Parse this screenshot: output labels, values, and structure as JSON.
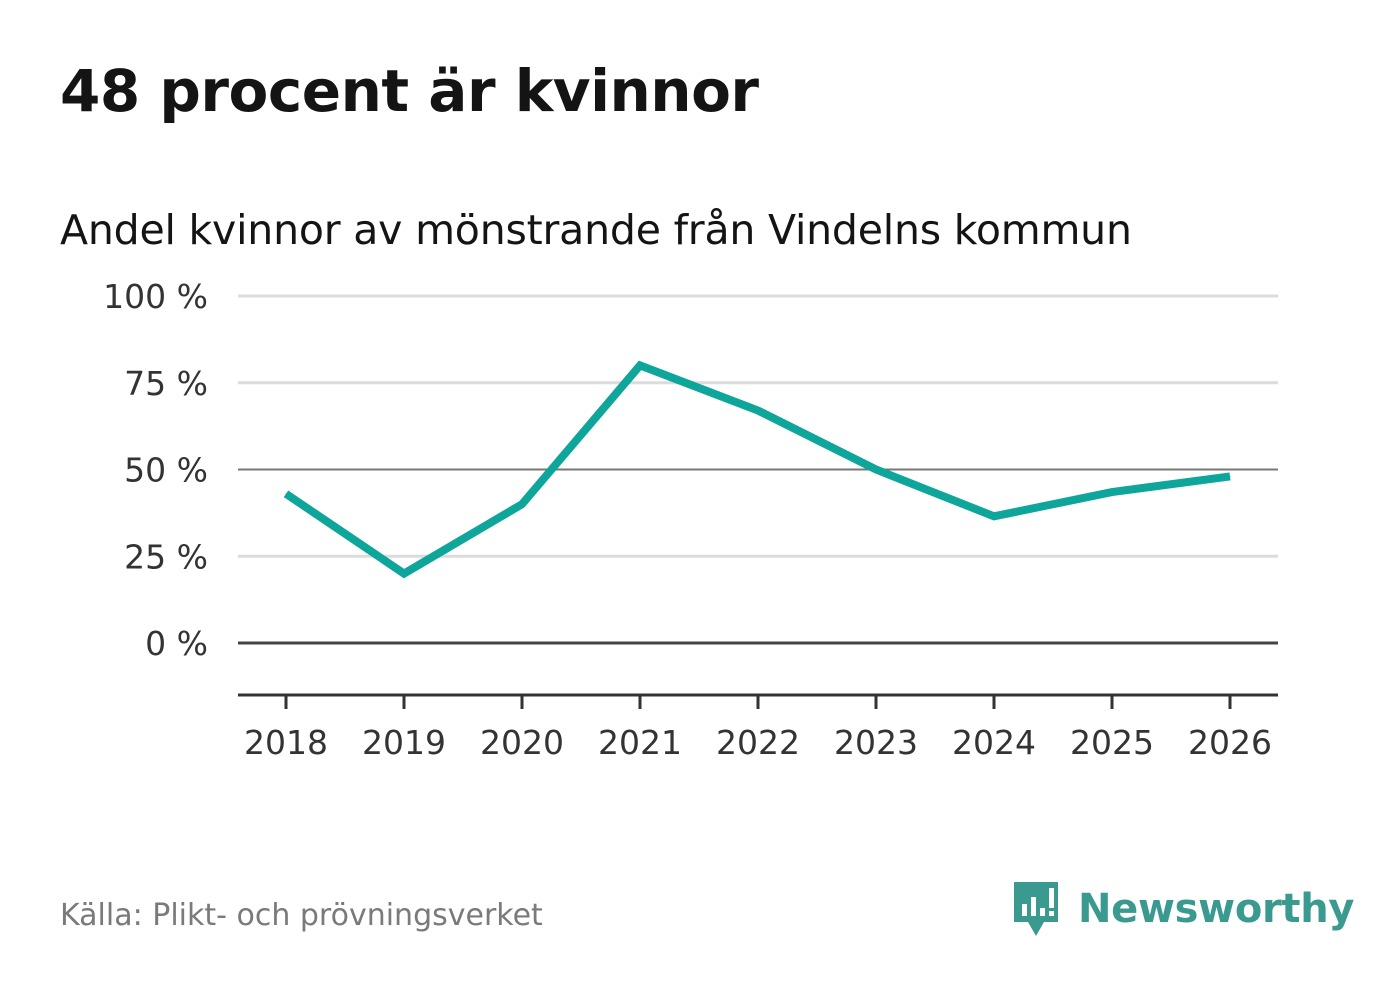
{
  "header": {
    "title": "48 procent är kvinnor"
  },
  "chart_data": {
    "type": "line",
    "title": "48 procent är kvinnor",
    "subtitle": "Andel kvinnor av mönstrande från Vindelns kommun",
    "xlabel": "",
    "ylabel": "",
    "x": [
      "2018",
      "2019",
      "2020",
      "2021",
      "2022",
      "2023",
      "2024",
      "2025",
      "2026"
    ],
    "series": [
      {
        "name": "Andel kvinnor",
        "values": [
          43,
          20,
          40,
          80,
          67,
          50,
          36.5,
          43.5,
          48
        ]
      }
    ],
    "ylim": [
      -15,
      100
    ],
    "yticks": [
      0,
      25,
      50,
      75,
      100
    ],
    "ytick_labels": [
      "0 %",
      "25 %",
      "50 %",
      "75 %",
      "100 %"
    ],
    "grid": true,
    "legend": "none",
    "line_color": "#0ea59a"
  },
  "footer": {
    "source": "Källa: Plikt- och prövningsverket",
    "brand": "Newsworthy",
    "brand_icon": "newsworthy-logo-icon",
    "brand_color": "#3a9a90"
  }
}
